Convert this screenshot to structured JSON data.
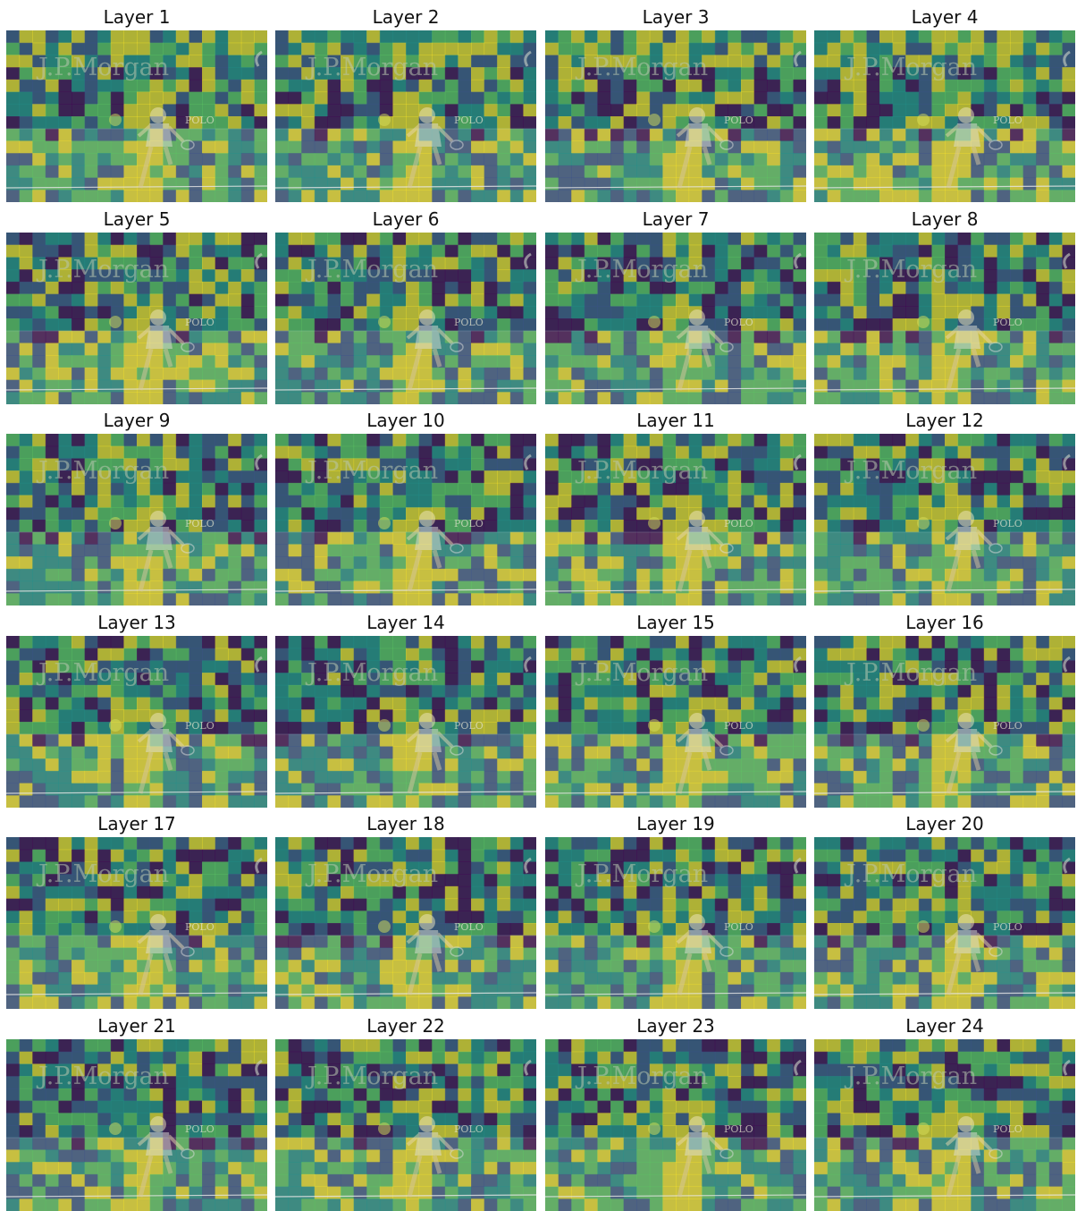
{
  "figure": {
    "layers": [
      {
        "title": "Layer 1"
      },
      {
        "title": "Layer 2"
      },
      {
        "title": "Layer 3"
      },
      {
        "title": "Layer 4"
      },
      {
        "title": "Layer 5"
      },
      {
        "title": "Layer 6"
      },
      {
        "title": "Layer 7"
      },
      {
        "title": "Layer 8"
      },
      {
        "title": "Layer 9"
      },
      {
        "title": "Layer 10"
      },
      {
        "title": "Layer 11"
      },
      {
        "title": "Layer 12"
      },
      {
        "title": "Layer 13"
      },
      {
        "title": "Layer 14"
      },
      {
        "title": "Layer 15"
      },
      {
        "title": "Layer 16"
      },
      {
        "title": "Layer 17"
      },
      {
        "title": "Layer 18"
      },
      {
        "title": "Layer 19"
      },
      {
        "title": "Layer 20"
      },
      {
        "title": "Layer 21"
      },
      {
        "title": "Layer 22"
      },
      {
        "title": "Layer 23"
      },
      {
        "title": "Layer 24"
      }
    ],
    "scene_text": {
      "banner": "J.P.Morgan",
      "sign": "POLO"
    },
    "colormap": [
      "#440154",
      "#3b528b",
      "#21918c",
      "#5ec962",
      "#fde725"
    ],
    "court_color": "#6e7e70",
    "wall_color": "#2f5a52"
  }
}
